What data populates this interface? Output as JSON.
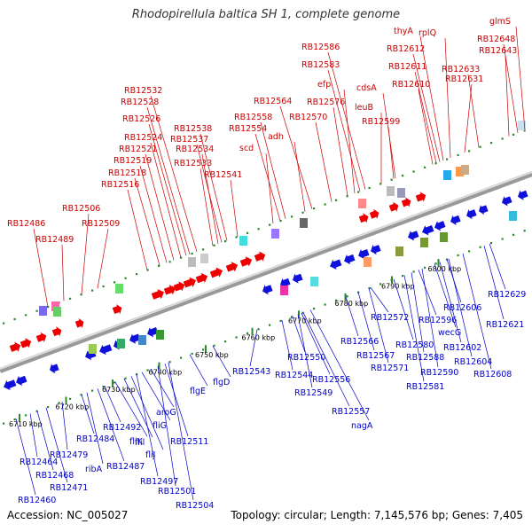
{
  "title": "Rhodopirellula baltica SH 1, complete genome",
  "accession": "Accession: NC_005027",
  "topology": "Topology: circular; Length: 7,145,576 bp; Genes: 7,405",
  "colors": {
    "fwd_label": "#cc0000",
    "rev_label": "#0000cc",
    "fwd_arrow": "#ee0000",
    "rev_arrow": "#1010dd",
    "backbone": "#888888",
    "tick": "#2a8a2a"
  },
  "ticks": [
    "6710 kbp",
    "6720 kbp",
    "6730 kbp",
    "6740 kbp",
    "6750 kbp",
    "6760 kbp",
    "6770 kbp",
    "6780 kbp",
    "6790 kbp",
    "6800 kbp"
  ],
  "forward_labels": [
    "RB12486",
    "RB12489",
    "RB12506",
    "RB12509",
    "RB12516",
    "RB12518",
    "RB12519",
    "RB12521",
    "RB12524",
    "RB12526",
    "RB12528",
    "RB12532",
    "RB12533",
    "RB12534",
    "RB12537",
    "RB12538",
    "RB12541",
    "scd",
    "RB12554",
    "RB12558",
    "adh",
    "RB12564",
    "RB12570",
    "RB12576",
    "efp",
    "RB12583",
    "RB12586",
    "leuB",
    "RB12599",
    "cdsA",
    "RB12610",
    "RB12611",
    "RB12612",
    "thyA",
    "rplQ",
    "RB12631",
    "RB12633",
    "RB12643",
    "RB12648",
    "glmS"
  ],
  "reverse_labels": [
    "RB12460",
    "RB12464",
    "RB12468",
    "RB12471",
    "RB12479",
    "RB12484",
    "ribA",
    "RB12487",
    "RB12492",
    "fliK",
    "flil",
    "fliJ",
    "RB12497",
    "fliG",
    "aroG",
    "RB12501",
    "RB12504",
    "RB12511",
    "flgE",
    "flgD",
    "RB12543",
    "RB12544",
    "RB12550",
    "RB12549",
    "RB12556",
    "RB12557",
    "nagA",
    "RB12566",
    "RB12567",
    "RB12571",
    "RB12572",
    "RB12580",
    "RB12581",
    "RB12588",
    "RB12590",
    "RB12596",
    "wecG",
    "RB12602",
    "RB12604",
    "RB12606",
    "RB12608",
    "RB12621",
    "RB12629"
  ]
}
